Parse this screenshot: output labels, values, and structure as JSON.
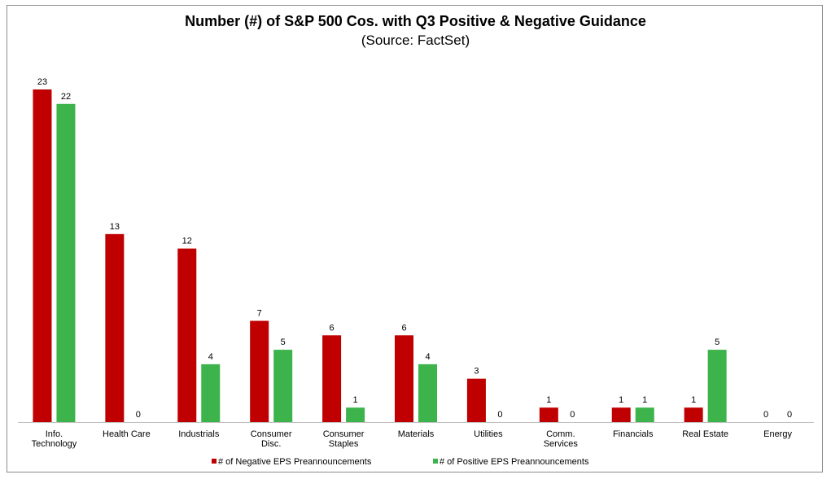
{
  "chart_data": {
    "type": "bar",
    "title": "Number (#) of S&P 500 Cos. with Q3 Positive & Negative Guidance",
    "subtitle": "(Source: FactSet)",
    "categories": [
      [
        "Info.",
        "Technology"
      ],
      [
        "Health Care"
      ],
      [
        "Industrials"
      ],
      [
        "Consumer",
        "Disc."
      ],
      [
        "Consumer",
        "Staples"
      ],
      [
        "Materials"
      ],
      [
        "Utilities"
      ],
      [
        "Comm.",
        "Services"
      ],
      [
        "Financials"
      ],
      [
        "Real Estate"
      ],
      [
        "Energy"
      ]
    ],
    "series": [
      {
        "name": "# of Negative EPS Preannouncements",
        "color": "#c00000",
        "values": [
          23,
          13,
          12,
          7,
          6,
          6,
          3,
          1,
          1,
          1,
          0
        ]
      },
      {
        "name": "# of Positive EPS Preannouncements",
        "color": "#3cb44b",
        "values": [
          22,
          0,
          4,
          5,
          1,
          4,
          0,
          0,
          1,
          5,
          0
        ]
      }
    ],
    "ylim": [
      0,
      23
    ],
    "legend": "bottom",
    "grid": false
  }
}
